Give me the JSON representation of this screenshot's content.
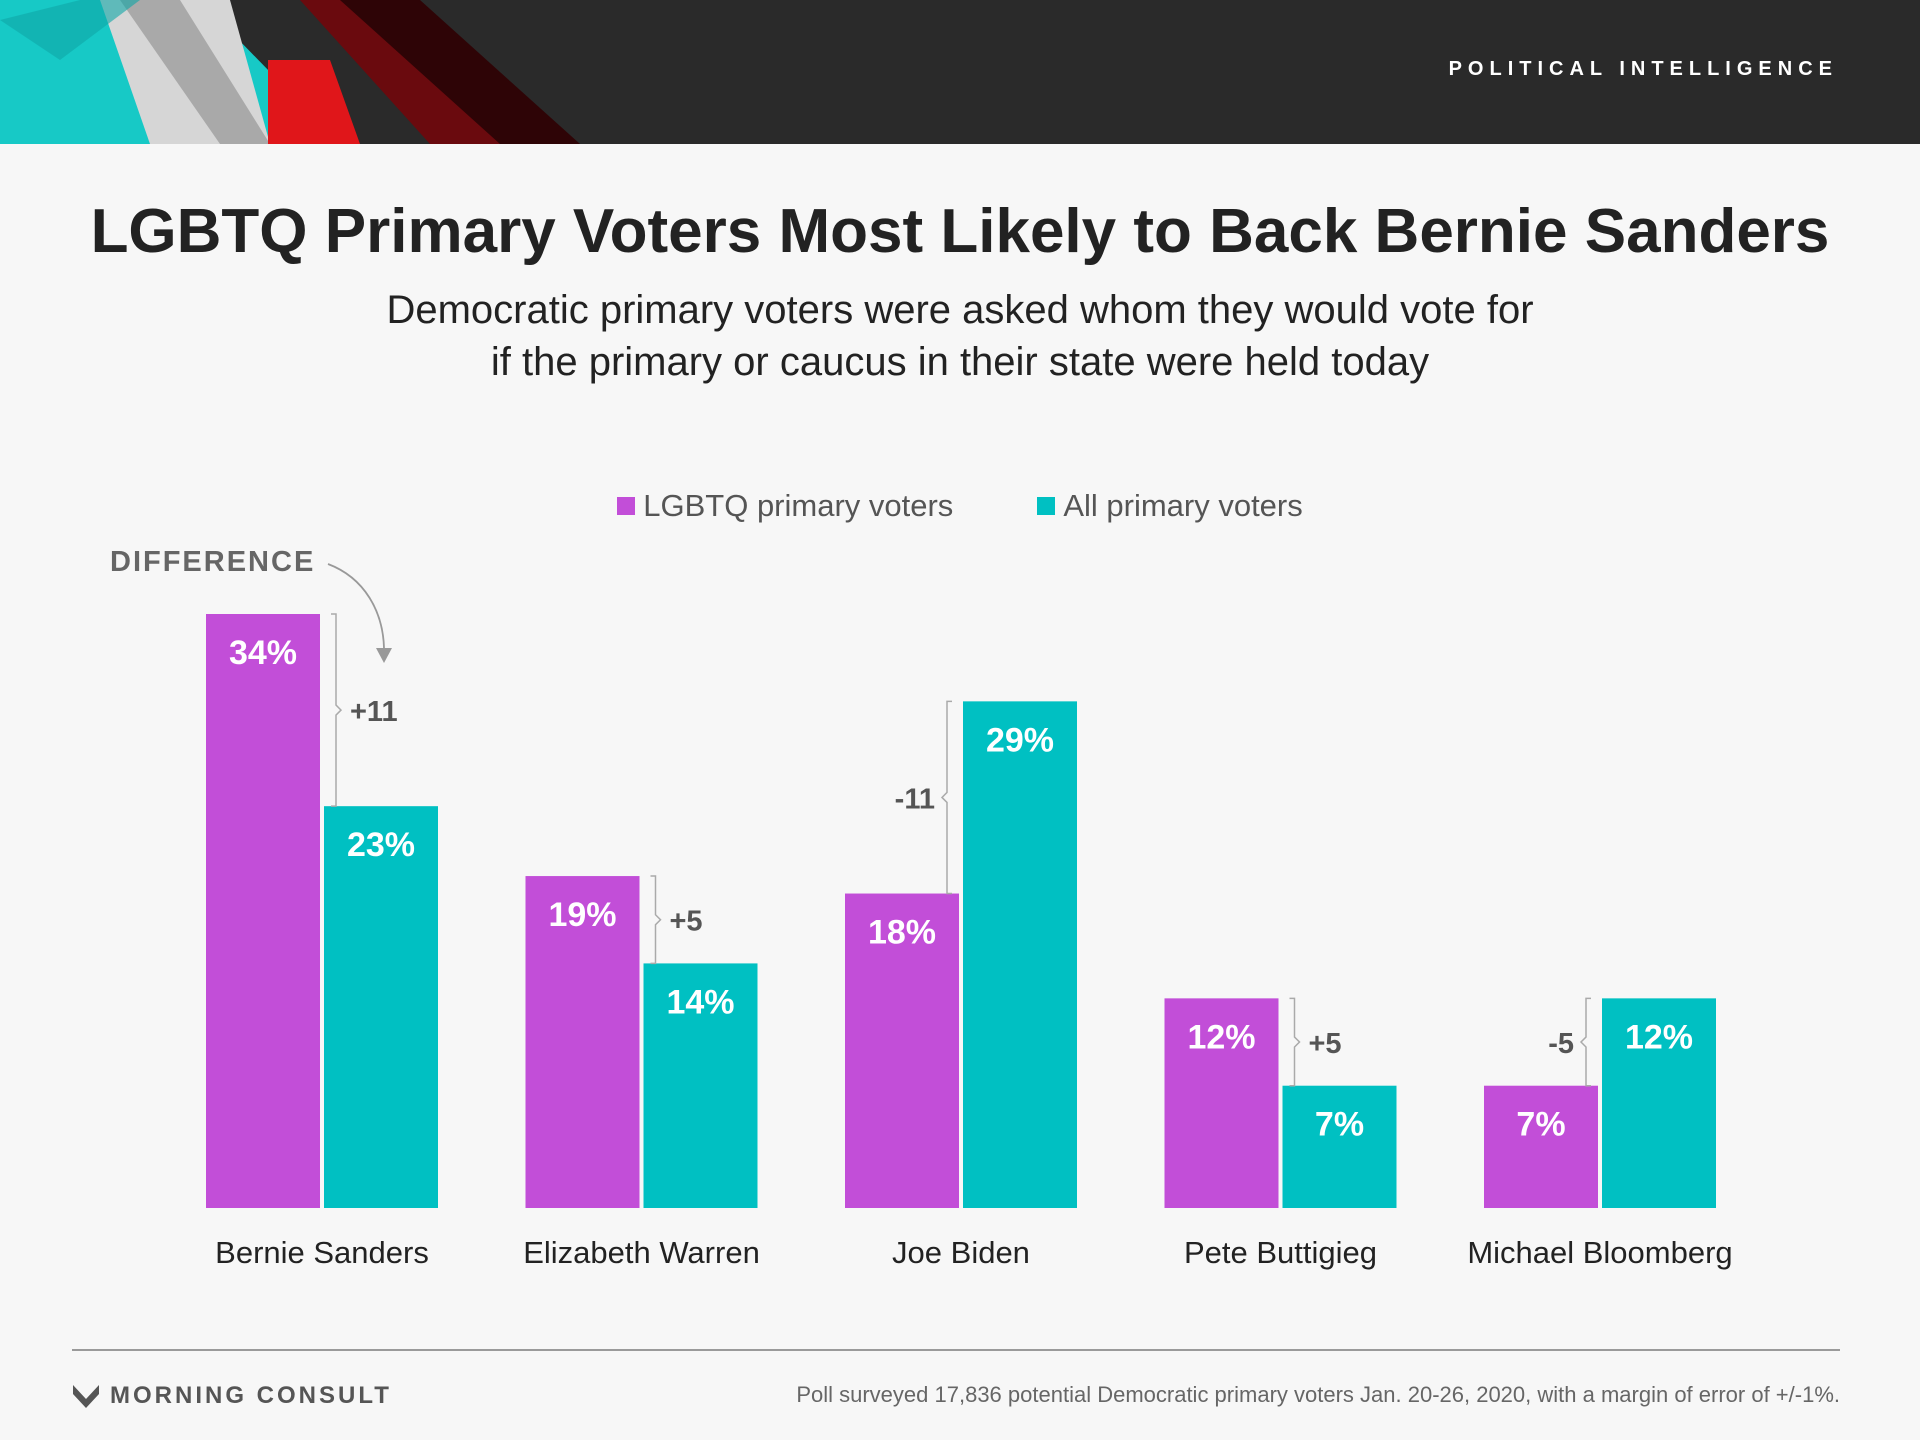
{
  "header": {
    "tag": "POLITICAL INTELLIGENCE"
  },
  "colors": {
    "lgbtq": "#c24ed8",
    "all": "#00c0c2",
    "bracket": "#aaaaaa",
    "banner": "#2a2a2a"
  },
  "chart_data": {
    "type": "bar",
    "title": "LGBTQ Primary Voters Most Likely to Back Bernie Sanders",
    "subtitle": [
      "Democratic primary voters were asked whom they would vote for",
      "if the primary or caucus in their state were held today"
    ],
    "categories": [
      "Bernie Sanders",
      "Elizabeth Warren",
      "Joe Biden",
      "Pete Buttigieg",
      "Michael Bloomberg"
    ],
    "series": [
      {
        "name": "LGBTQ primary voters",
        "values": [
          34,
          19,
          18,
          12,
          7
        ],
        "labels": [
          "34%",
          "19%",
          "18%",
          "12%",
          "7%"
        ]
      },
      {
        "name": "All primary voters",
        "values": [
          23,
          14,
          29,
          7,
          12
        ],
        "labels": [
          "23%",
          "14%",
          "29%",
          "7%",
          "12%"
        ]
      }
    ],
    "difference_label": "DIFFERENCE",
    "differences": [
      "+11",
      "+5",
      "-11",
      "+5",
      "-5"
    ],
    "xlabel": "",
    "ylabel": "",
    "ylim": [
      0,
      34
    ],
    "grid": false,
    "legend": "top-center"
  },
  "footer": {
    "logo": "MORNING CONSULT",
    "note": "Poll surveyed 17,836 potential Democratic primary voters Jan. 20-26, 2020, with a margin of error of +/-1%."
  }
}
